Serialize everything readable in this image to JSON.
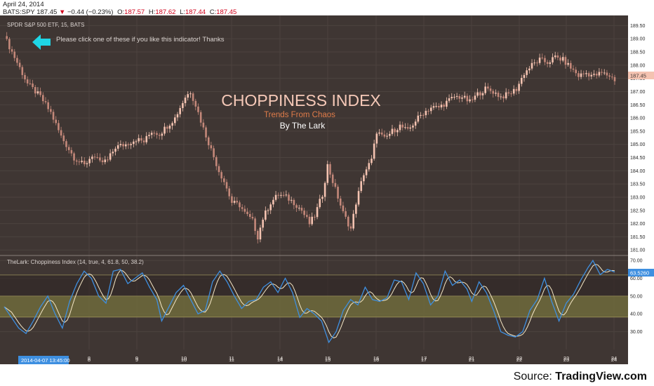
{
  "header": {
    "date": "April 24, 2014",
    "symbol": "BATS:SPY",
    "last": "187.45",
    "change": "−0.44 (−0.23%)",
    "open_label": "O:",
    "open": "187.57",
    "high_label": "H:",
    "high": "187.62",
    "low_label": "L:",
    "low": "187.44",
    "close_label": "C:",
    "close": "187.45"
  },
  "chart": {
    "instrument": "SPDR S&P 500 ETF, 15, BATS",
    "note": "Please click one of these if you like this indicator! Thanks",
    "title": "CHOPPINESS INDEX",
    "subtitle": "Trends From Chaos",
    "author": "By The Lark",
    "indicator_label": "TheLark: Choppiness Index (14, true, 4, 61.8, 50, 38.2)",
    "cursor_time": "2014-04-07 13:45:00",
    "price_last_tag": "187.45",
    "chop_last_tag": "63.5260",
    "source_prefix": "Source: ",
    "source_name": "TradingView.com"
  },
  "colors": {
    "background": "#3f3633",
    "candle_up": "#f4c3b1",
    "candle_down": "#c4887a",
    "chop_line": "#3e8fe0",
    "chop_smooth": "#f5e7c5",
    "band_fill": "#6e6a3c",
    "title": "#f6c9b8",
    "subtitle": "#e07c4a",
    "arrow": "#1fd6e6",
    "price_tag": "#f4c3b1",
    "chop_tag": "#3e8fe0"
  },
  "chart_data": [
    {
      "type": "candlestick",
      "title": "SPDR S&P 500 ETF, 15, BATS",
      "x_tick_labels": [
        "8",
        "9",
        "10",
        "11",
        "14",
        "15",
        "16",
        "17",
        "21",
        "22",
        "23",
        "24"
      ],
      "y_tick_labels": [
        "181.00",
        "181.50",
        "182.00",
        "182.50",
        "183.00",
        "183.50",
        "184.00",
        "184.50",
        "185.00",
        "185.50",
        "186.00",
        "186.50",
        "187.00",
        "187.50",
        "188.00",
        "188.50",
        "189.00",
        "189.50"
      ],
      "ylim": [
        180.9,
        189.75
      ],
      "last_price": 187.45,
      "close_path": [
        [
          0,
          189.1
        ],
        [
          4,
          188.3
        ],
        [
          9,
          187.3
        ],
        [
          14,
          186.8
        ],
        [
          18,
          186.2
        ],
        [
          22,
          185.3
        ],
        [
          27,
          184.5
        ],
        [
          31,
          184.2
        ],
        [
          34,
          184.6
        ],
        [
          37,
          184.3
        ],
        [
          40,
          184.4
        ],
        [
          43,
          184.9
        ],
        [
          47,
          185.0
        ],
        [
          51,
          185.2
        ],
        [
          54,
          185.1
        ],
        [
          57,
          185.5
        ],
        [
          60,
          185.4
        ],
        [
          63,
          185.7
        ],
        [
          66,
          186.0
        ],
        [
          68,
          186.4
        ],
        [
          70,
          186.8
        ],
        [
          72,
          187.0
        ],
        [
          74,
          186.5
        ],
        [
          77,
          185.6
        ],
        [
          80,
          184.8
        ],
        [
          83,
          184.0
        ],
        [
          85,
          183.6
        ],
        [
          88,
          182.8
        ],
        [
          91,
          182.7
        ],
        [
          93,
          182.4
        ],
        [
          96,
          182.1
        ],
        [
          98,
          181.5
        ],
        [
          100,
          182.2
        ],
        [
          103,
          182.8
        ],
        [
          106,
          183.1
        ],
        [
          109,
          183.0
        ],
        [
          112,
          182.8
        ],
        [
          115,
          182.5
        ],
        [
          118,
          182.0
        ],
        [
          120,
          182.3
        ],
        [
          123,
          183.1
        ],
        [
          125,
          184.2
        ],
        [
          128,
          183.3
        ],
        [
          131,
          182.4
        ],
        [
          134,
          181.8
        ],
        [
          136,
          182.8
        ],
        [
          139,
          183.9
        ],
        [
          142,
          184.4
        ],
        [
          144,
          185.5
        ],
        [
          147,
          185.2
        ],
        [
          150,
          185.5
        ],
        [
          153,
          185.7
        ],
        [
          156,
          185.5
        ],
        [
          159,
          185.9
        ],
        [
          162,
          186.2
        ],
        [
          165,
          186.4
        ],
        [
          168,
          186.4
        ],
        [
          171,
          186.6
        ],
        [
          174,
          186.8
        ],
        [
          177,
          186.8
        ],
        [
          180,
          186.6
        ],
        [
          183,
          186.9
        ],
        [
          186,
          187.1
        ],
        [
          189,
          187.0
        ],
        [
          192,
          186.8
        ],
        [
          195,
          186.9
        ],
        [
          198,
          187.1
        ],
        [
          201,
          187.7
        ],
        [
          204,
          188.0
        ],
        [
          207,
          188.2
        ],
        [
          210,
          188.1
        ],
        [
          213,
          188.3
        ],
        [
          216,
          188.2
        ],
        [
          219,
          187.9
        ],
        [
          222,
          187.6
        ],
        [
          225,
          187.7
        ],
        [
          228,
          187.6
        ],
        [
          231,
          187.7
        ],
        [
          234,
          187.6
        ],
        [
          236,
          187.45
        ]
      ]
    },
    {
      "type": "line",
      "title": "TheLark: Choppiness Index (14, true, 4, 61.8, 50, 38.2)",
      "x_tick_labels": [
        "8",
        "9",
        "10",
        "11",
        "14",
        "15",
        "16",
        "17",
        "21",
        "22",
        "23",
        "24"
      ],
      "y_tick_labels": [
        "30.00",
        "40.00",
        "50.00",
        "60.00",
        "70.00"
      ],
      "ylim": [
        20,
        72
      ],
      "bands": [
        38.2,
        50,
        61.8
      ],
      "last_value": 63.526,
      "series": [
        {
          "values_path": [
            [
              0,
              44
            ],
            [
              3,
              38
            ],
            [
              6,
              32
            ],
            [
              9,
              29
            ],
            [
              12,
              36
            ],
            [
              15,
              44
            ],
            [
              18,
              50
            ],
            [
              21,
              40
            ],
            [
              24,
              32
            ],
            [
              27,
              47
            ],
            [
              30,
              57
            ],
            [
              33,
              64
            ],
            [
              36,
              60
            ],
            [
              39,
              50
            ],
            [
              42,
              46
            ],
            [
              45,
              64
            ],
            [
              48,
              65
            ],
            [
              51,
              57
            ],
            [
              54,
              60
            ],
            [
              57,
              63
            ],
            [
              60,
              55
            ],
            [
              63,
              48
            ],
            [
              65,
              36
            ],
            [
              68,
              44
            ],
            [
              71,
              52
            ],
            [
              74,
              56
            ],
            [
              77,
              48
            ],
            [
              80,
              40
            ],
            [
              83,
              42
            ],
            [
              86,
              58
            ],
            [
              89,
              64
            ],
            [
              92,
              58
            ],
            [
              95,
              50
            ],
            [
              98,
              43
            ],
            [
              101,
              47
            ],
            [
              104,
              48
            ],
            [
              107,
              55
            ],
            [
              110,
              58
            ],
            [
              113,
              52
            ],
            [
              116,
              60
            ],
            [
              119,
              52
            ],
            [
              122,
              38
            ],
            [
              125,
              43
            ],
            [
              128,
              40
            ],
            [
              131,
              36
            ],
            [
              134,
              24
            ],
            [
              137,
              30
            ],
            [
              140,
              42
            ],
            [
              143,
              48
            ],
            [
              146,
              45
            ],
            [
              149,
              55
            ],
            [
              152,
              48
            ],
            [
              155,
              47
            ],
            [
              158,
              49
            ],
            [
              161,
              59
            ],
            [
              164,
              58
            ],
            [
              167,
              48
            ],
            [
              170,
              63
            ],
            [
              173,
              57
            ],
            [
              176,
              45
            ],
            [
              179,
              50
            ],
            [
              182,
              64
            ],
            [
              185,
              56
            ],
            [
              188,
              59
            ],
            [
              191,
              54
            ],
            [
              193,
              47
            ],
            [
              196,
              58
            ],
            [
              199,
              52
            ],
            [
              202,
              42
            ],
            [
              205,
              30
            ],
            [
              208,
              28
            ],
            [
              211,
              27
            ],
            [
              214,
              30
            ],
            [
              217,
              42
            ],
            [
              220,
              48
            ],
            [
              223,
              60
            ],
            [
              226,
              47
            ],
            [
              229,
              36
            ],
            [
              232,
              46
            ],
            [
              235,
              51
            ],
            [
              238,
              59
            ],
            [
              241,
              66
            ],
            [
              243,
              70
            ],
            [
              246,
              62
            ],
            [
              249,
              65
            ],
            [
              252,
              63.5
            ]
          ]
        }
      ]
    }
  ]
}
